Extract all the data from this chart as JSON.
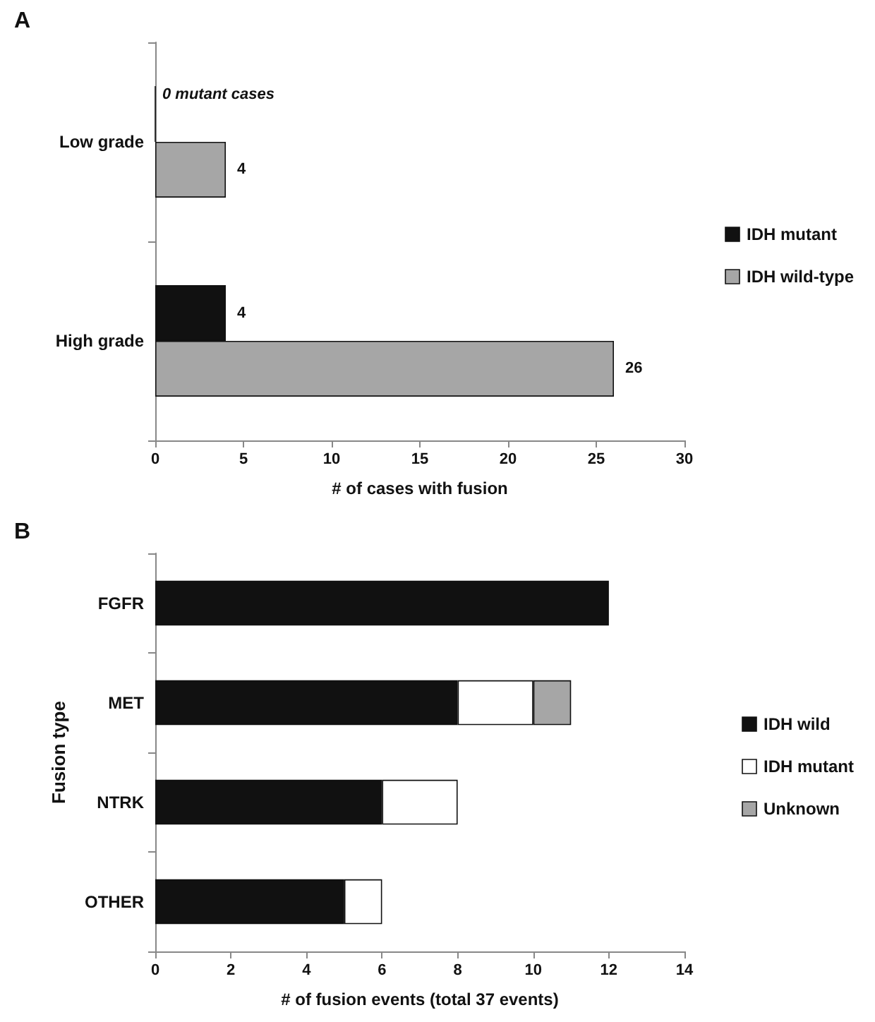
{
  "chart_data": [
    {
      "type": "bar",
      "title": "A",
      "orientation": "horizontal",
      "categories": [
        "Low grade",
        "High grade"
      ],
      "xlabel": "# of cases with fusion",
      "xlim": [
        0,
        30
      ],
      "xticks": [
        0,
        5,
        10,
        15,
        20,
        25,
        30
      ],
      "grid": false,
      "legend": "right",
      "series": [
        {
          "name": "IDH mutant",
          "color": "#111111",
          "values": [
            0,
            4
          ],
          "value_labels": [
            null,
            "4"
          ]
        },
        {
          "name": "IDH wild-type",
          "color": "#a6a6a6",
          "values": [
            4,
            26
          ],
          "value_labels": [
            "4",
            "26"
          ]
        }
      ],
      "annotations": [
        {
          "text": "0 mutant cases",
          "x": 0,
          "y": "Low grade"
        }
      ]
    },
    {
      "type": "bar",
      "title": "B",
      "orientation": "horizontal",
      "stacked": true,
      "categories": [
        "FGFR",
        "MET",
        "NTRK",
        "OTHER"
      ],
      "xlabel": "# of fusion events (total 37 events)",
      "ylabel": "Fusion type",
      "xlim": [
        0,
        14
      ],
      "xticks": [
        0,
        2,
        4,
        6,
        8,
        10,
        12,
        14
      ],
      "grid": false,
      "legend": "right",
      "series": [
        {
          "name": "IDH wild",
          "color": "#111111",
          "values": [
            12,
            8,
            6,
            5
          ]
        },
        {
          "name": "IDH mutant",
          "color": "#ffffff",
          "values": [
            null,
            2,
            2,
            1
          ]
        },
        {
          "name": "Unknown",
          "color": "#a6a6a6",
          "values": [
            null,
            1,
            null,
            null
          ]
        }
      ]
    }
  ]
}
